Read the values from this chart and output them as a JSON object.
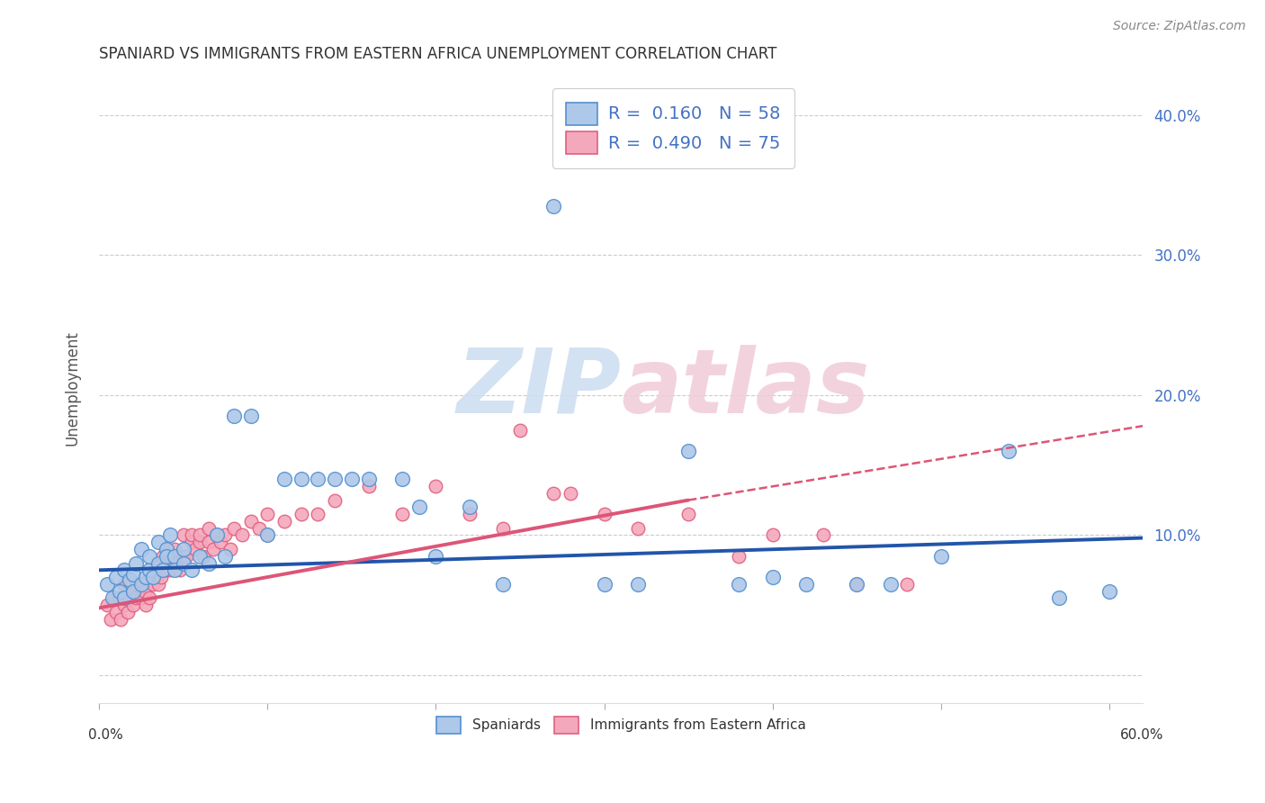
{
  "title": "SPANIARD VS IMMIGRANTS FROM EASTERN AFRICA UNEMPLOYMENT CORRELATION CHART",
  "source": "Source: ZipAtlas.com",
  "ylabel": "Unemployment",
  "yticks": [
    0.0,
    0.1,
    0.2,
    0.3,
    0.4
  ],
  "ytick_labels": [
    "",
    "10.0%",
    "20.0%",
    "30.0%",
    "40.0%"
  ],
  "xlim": [
    0.0,
    0.62
  ],
  "ylim": [
    -0.02,
    0.43
  ],
  "spaniard_color": "#adc8e8",
  "immigrant_color": "#f4a8bc",
  "spaniard_edge_color": "#5590d0",
  "immigrant_edge_color": "#e06080",
  "spaniard_line_color": "#2255aa",
  "immigrant_line_color": "#dd5577",
  "watermark_color": "#ccddf0",
  "watermark_pink": "#f0ccd8",
  "grid_color": "#cccccc",
  "title_color": "#333333",
  "right_tick_color": "#4472c4",
  "source_color": "#888888",
  "sp_line_start_x": 0.0,
  "sp_line_start_y": 0.075,
  "sp_line_end_x": 0.62,
  "sp_line_end_y": 0.098,
  "im_line_start_x": 0.0,
  "im_line_start_y": 0.048,
  "im_line_solid_end_x": 0.35,
  "im_line_solid_end_y": 0.125,
  "im_line_dash_end_x": 0.62,
  "im_line_dash_end_y": 0.178,
  "spaniard_x": [
    0.005,
    0.008,
    0.01,
    0.012,
    0.015,
    0.015,
    0.018,
    0.02,
    0.02,
    0.022,
    0.025,
    0.025,
    0.028,
    0.03,
    0.03,
    0.032,
    0.035,
    0.035,
    0.038,
    0.04,
    0.04,
    0.042,
    0.045,
    0.045,
    0.05,
    0.05,
    0.055,
    0.06,
    0.065,
    0.07,
    0.075,
    0.08,
    0.09,
    0.1,
    0.11,
    0.12,
    0.13,
    0.14,
    0.15,
    0.16,
    0.18,
    0.19,
    0.2,
    0.22,
    0.24,
    0.27,
    0.3,
    0.32,
    0.35,
    0.38,
    0.4,
    0.42,
    0.45,
    0.47,
    0.5,
    0.54,
    0.57,
    0.6
  ],
  "spaniard_y": [
    0.065,
    0.055,
    0.07,
    0.06,
    0.075,
    0.055,
    0.068,
    0.072,
    0.06,
    0.08,
    0.065,
    0.09,
    0.07,
    0.075,
    0.085,
    0.07,
    0.08,
    0.095,
    0.075,
    0.09,
    0.085,
    0.1,
    0.085,
    0.075,
    0.09,
    0.08,
    0.075,
    0.085,
    0.08,
    0.1,
    0.085,
    0.185,
    0.185,
    0.1,
    0.14,
    0.14,
    0.14,
    0.14,
    0.14,
    0.14,
    0.14,
    0.12,
    0.085,
    0.12,
    0.065,
    0.335,
    0.065,
    0.065,
    0.16,
    0.065,
    0.07,
    0.065,
    0.065,
    0.065,
    0.085,
    0.16,
    0.055,
    0.06
  ],
  "immigrant_x": [
    0.005,
    0.007,
    0.009,
    0.01,
    0.012,
    0.013,
    0.015,
    0.015,
    0.017,
    0.018,
    0.02,
    0.02,
    0.022,
    0.022,
    0.025,
    0.025,
    0.027,
    0.028,
    0.03,
    0.03,
    0.032,
    0.033,
    0.035,
    0.035,
    0.037,
    0.038,
    0.04,
    0.04,
    0.042,
    0.043,
    0.045,
    0.045,
    0.048,
    0.05,
    0.05,
    0.052,
    0.055,
    0.055,
    0.057,
    0.06,
    0.06,
    0.062,
    0.065,
    0.065,
    0.068,
    0.07,
    0.072,
    0.075,
    0.078,
    0.08,
    0.085,
    0.09,
    0.095,
    0.1,
    0.1,
    0.11,
    0.12,
    0.13,
    0.14,
    0.16,
    0.18,
    0.2,
    0.22,
    0.24,
    0.25,
    0.27,
    0.28,
    0.3,
    0.32,
    0.35,
    0.38,
    0.4,
    0.43,
    0.45,
    0.48
  ],
  "immigrant_y": [
    0.05,
    0.04,
    0.055,
    0.045,
    0.055,
    0.04,
    0.05,
    0.065,
    0.045,
    0.055,
    0.06,
    0.05,
    0.065,
    0.055,
    0.065,
    0.055,
    0.06,
    0.05,
    0.07,
    0.055,
    0.065,
    0.075,
    0.065,
    0.08,
    0.07,
    0.085,
    0.075,
    0.09,
    0.075,
    0.085,
    0.08,
    0.09,
    0.075,
    0.085,
    0.1,
    0.085,
    0.095,
    0.1,
    0.09,
    0.095,
    0.1,
    0.085,
    0.095,
    0.105,
    0.09,
    0.1,
    0.095,
    0.1,
    0.09,
    0.105,
    0.1,
    0.11,
    0.105,
    0.1,
    0.115,
    0.11,
    0.115,
    0.115,
    0.125,
    0.135,
    0.115,
    0.135,
    0.115,
    0.105,
    0.175,
    0.13,
    0.13,
    0.115,
    0.105,
    0.115,
    0.085,
    0.1,
    0.1,
    0.065,
    0.065
  ]
}
